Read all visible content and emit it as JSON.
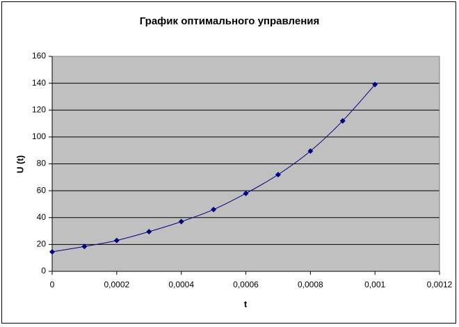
{
  "chart_data": {
    "type": "scatter",
    "title": "График оптимального управления",
    "x_label": "t",
    "y_label": "U (t)",
    "series": [
      {
        "color": "#000080",
        "x": [
          0,
          0.0001,
          0.0002,
          0.0003,
          0.0004,
          0.0005,
          0.0006,
          0.0007,
          0.0008,
          0.0009,
          0.001
        ],
        "values": [
          14.5,
          18.5,
          23,
          29.5,
          37,
          46,
          58,
          72,
          89.5,
          112,
          139
        ]
      }
    ],
    "xlim": [
      0,
      0.0012
    ],
    "xticks": [
      0,
      {
        "value": 0.0002,
        "label": "0,0002"
      },
      {
        "value": 0.0004,
        "label": "0,0004"
      },
      {
        "value": 0.0006,
        "label": "0,0006"
      },
      {
        "value": 0.0008,
        "label": "0,0008"
      },
      {
        "value": 0.001,
        "label": "0,001"
      },
      {
        "value": 0.0012,
        "label": "0,0012"
      }
    ],
    "ylim": [
      0,
      160
    ],
    "yticks": [
      0,
      20,
      40,
      60,
      80,
      100,
      120,
      140,
      160
    ],
    "grid": true,
    "plot_background": "#c0c0c0"
  }
}
